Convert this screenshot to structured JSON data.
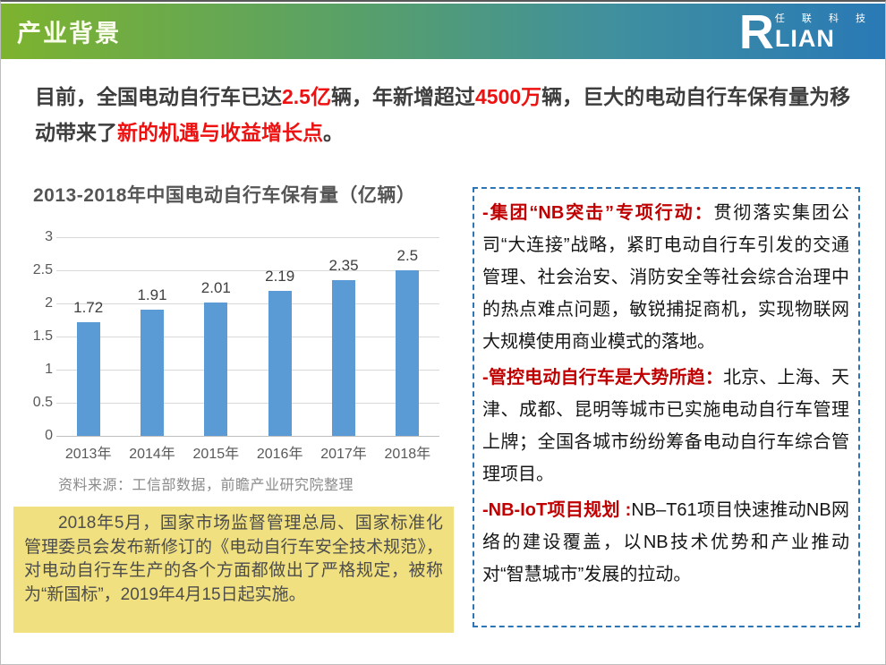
{
  "colors": {
    "header_gradient": [
      "#7db32e",
      "#58a069",
      "#3f8fa0",
      "#2979b6"
    ],
    "highlight_red": "#ee1111",
    "panel_lead_red": "#c00000",
    "bar_blue": "#5b9bd5",
    "note_yellow_bg": "#f0e080",
    "panel_border_blue": "#2e75b6"
  },
  "header": {
    "title": "产业背景"
  },
  "logo": {
    "r": "R",
    "lian": "LIAN",
    "company": "任 联 科 技"
  },
  "intro": {
    "segments": [
      {
        "text": "目前，全国电动自行车已达",
        "style": "seg-dark"
      },
      {
        "text": "2.5亿",
        "style": "seg-red"
      },
      {
        "text": "辆，年新增超过",
        "style": "seg-dark"
      },
      {
        "text": "4500万",
        "style": "seg-red"
      },
      {
        "text": "辆，巨大的电动自行车保有量为移动带来了",
        "style": "seg-dark"
      },
      {
        "text": "新的机遇与收益增长点",
        "style": "seg-red"
      },
      {
        "text": "。",
        "style": "seg-dark"
      }
    ]
  },
  "chart": {
    "title": "2013-2018年中国电动自行车保有量（亿辆）",
    "source": "资料来源：工信部数据，前瞻产业研究院整理"
  },
  "chart_data": {
    "type": "bar",
    "title": "2013-2018年中国电动自行车保有量（亿辆）",
    "categories": [
      "2013年",
      "2014年",
      "2015年",
      "2016年",
      "2017年",
      "2018年"
    ],
    "values": [
      1.72,
      1.91,
      2.01,
      2.19,
      2.35,
      2.5
    ],
    "xlabel": "",
    "ylabel": "",
    "ylim": [
      0,
      3
    ],
    "yticks": [
      0,
      0.5,
      1,
      1.5,
      2,
      2.5,
      3
    ],
    "grid": true,
    "legend": false,
    "bar_color": "#5b9bd5"
  },
  "note_box": {
    "text": "2018年5月，国家市场监督管理总局、国家标准化管理委员会发布新修订的《电动自行车安全技术规范》，对电动自行车生产的各个方面都做出了严格规定，被称为“新国标”，2019年4月15日起实施。"
  },
  "panel": {
    "items": [
      {
        "lead": "-集团“NB突击”专项行动：",
        "body": "贯彻落实集团公司“大连接”战略，紧盯电动自行车引发的交通管理、社会治安、消防安全等社会综合治理中的热点难点问题，敏锐捕捉商机，实现物联网大规模使用商业模式的落地。"
      },
      {
        "lead": "-管控电动自行车是大势所趋：",
        "body": "北京、上海、天津、成都、昆明等城市已实施电动自行车管理上牌；全国各城市纷纷筹备电动自行车综合管理项目。"
      },
      {
        "lead": "-NB-IoT项目规划 :",
        "body": "NB–T61项目快速推动NB网络的建设覆盖，以NB技术优势和产业推动对“智慧城市”发展的拉动。"
      }
    ]
  }
}
